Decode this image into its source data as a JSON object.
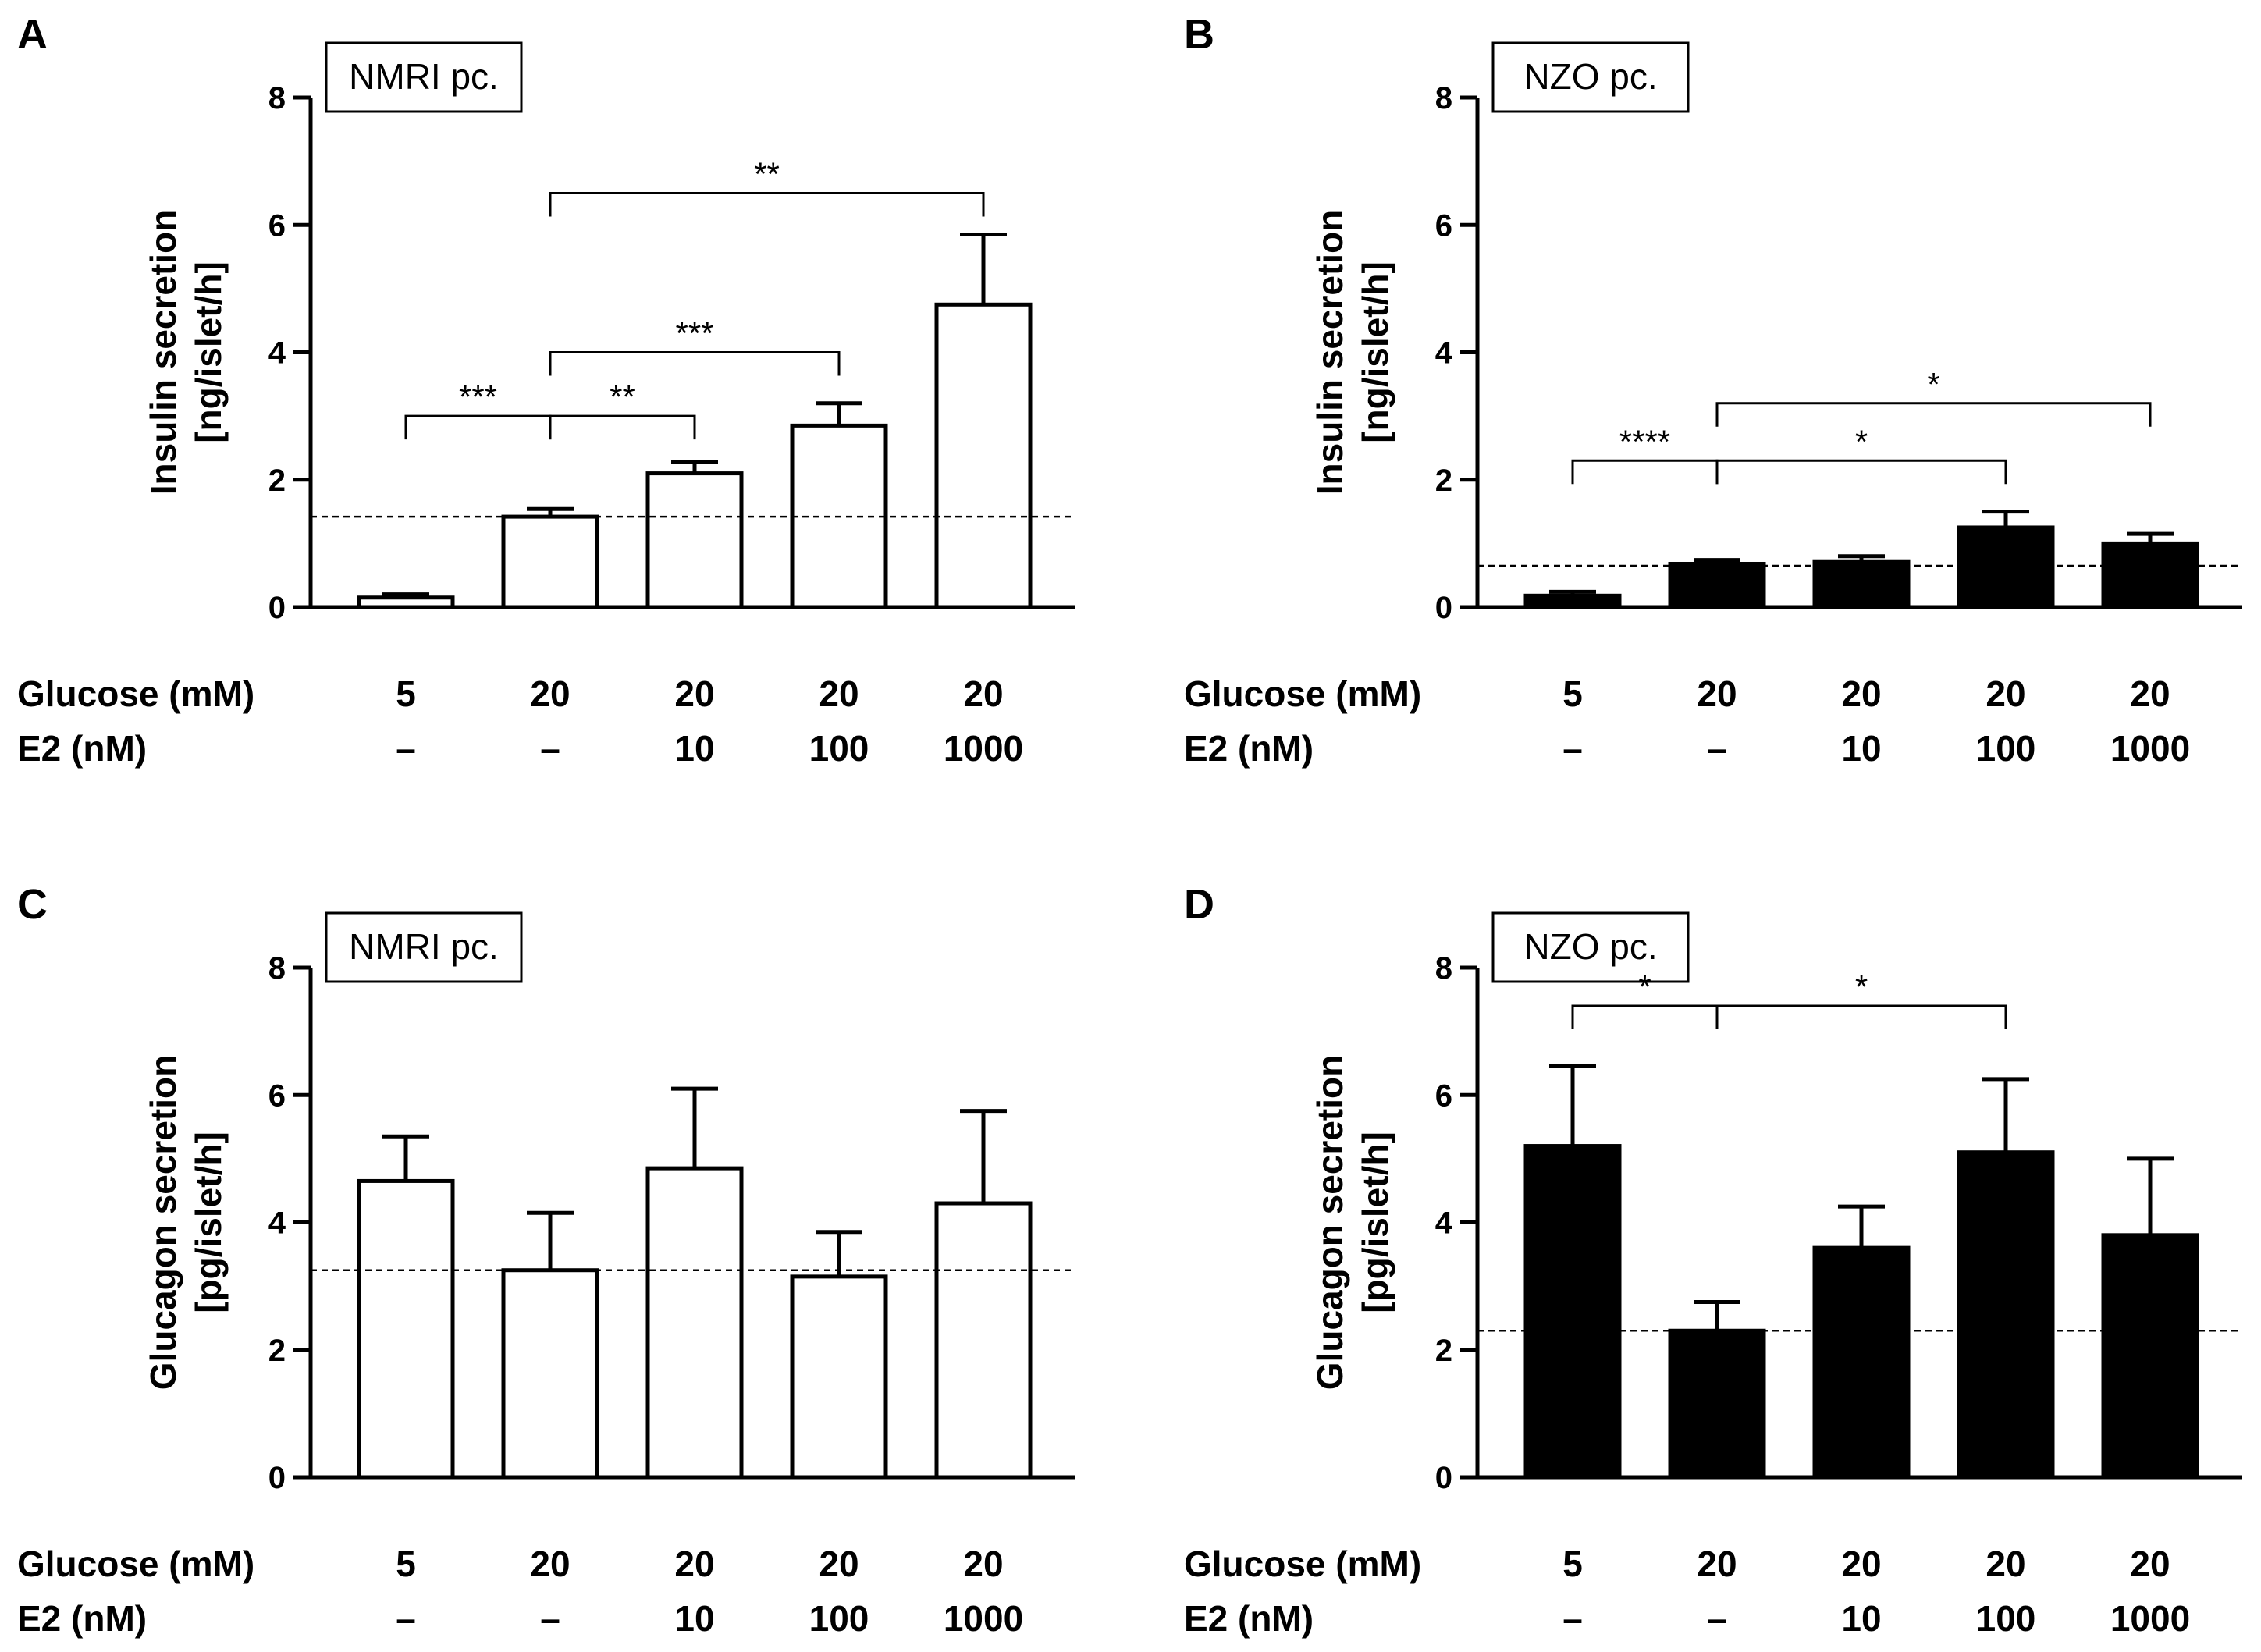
{
  "chart_data": [
    {
      "panel": "A",
      "type": "bar",
      "strain_label": "NMRI pc.",
      "ylabel": [
        "Insulin secretion",
        "[ng/islet/h]"
      ],
      "ylim": [
        0,
        8
      ],
      "yticks": [
        0,
        2,
        4,
        6,
        8
      ],
      "fill": "white",
      "glucose_label": "Glucose (mM)",
      "e2_label": "E2 (nM)",
      "glucose": [
        "5",
        "20",
        "20",
        "20",
        "20"
      ],
      "e2": [
        "–",
        "–",
        "10",
        "100",
        "1000"
      ],
      "values": [
        0.15,
        1.42,
        2.1,
        2.85,
        4.75
      ],
      "errors": [
        0.05,
        0.12,
        0.18,
        0.35,
        1.1
      ],
      "reference_line": 1.42,
      "significance": [
        {
          "from": 0,
          "to": 1,
          "label": "***",
          "y": 3.0
        },
        {
          "from": 1,
          "to": 2,
          "label": "**",
          "y": 3.0
        },
        {
          "from": 1,
          "to": 3,
          "label": "***",
          "y": 4.0
        },
        {
          "from": 1,
          "to": 4,
          "label": "**",
          "y": 6.5
        }
      ]
    },
    {
      "panel": "B",
      "type": "bar",
      "strain_label": "NZO pc.",
      "ylabel": [
        "Insulin secretion",
        "[ng/islet/h]"
      ],
      "ylim": [
        0,
        8
      ],
      "yticks": [
        0,
        2,
        4,
        6,
        8
      ],
      "fill": "black",
      "glucose_label": "Glucose (mM)",
      "e2_label": "E2 (nM)",
      "glucose": [
        "5",
        "20",
        "20",
        "20",
        "20"
      ],
      "e2": [
        "–",
        "–",
        "10",
        "100",
        "1000"
      ],
      "values": [
        0.18,
        0.68,
        0.72,
        1.25,
        1.0
      ],
      "errors": [
        0.06,
        0.06,
        0.08,
        0.25,
        0.15
      ],
      "reference_line": 0.65,
      "significance": [
        {
          "from": 0,
          "to": 1,
          "label": "****",
          "y": 2.3
        },
        {
          "from": 1,
          "to": 3,
          "label": "*",
          "y": 2.3
        },
        {
          "from": 1,
          "to": 4,
          "label": "*",
          "y": 3.2
        }
      ]
    },
    {
      "panel": "C",
      "type": "bar",
      "strain_label": "NMRI pc.",
      "ylabel": [
        "Glucagon secretion",
        "[pg/islet/h]"
      ],
      "ylim": [
        0,
        8
      ],
      "yticks": [
        0,
        2,
        4,
        6,
        8
      ],
      "fill": "white",
      "glucose_label": "Glucose (mM)",
      "e2_label": "E2 (nM)",
      "glucose": [
        "5",
        "20",
        "20",
        "20",
        "20"
      ],
      "e2": [
        "–",
        "–",
        "10",
        "100",
        "1000"
      ],
      "values": [
        4.65,
        3.25,
        4.85,
        3.15,
        4.3
      ],
      "errors": [
        0.7,
        0.9,
        1.25,
        0.7,
        1.45
      ],
      "reference_line": 3.25,
      "significance": []
    },
    {
      "panel": "D",
      "type": "bar",
      "strain_label": "NZO pc.",
      "ylabel": [
        "Glucagon secretion",
        "[pg/islet/h]"
      ],
      "ylim": [
        0,
        8
      ],
      "yticks": [
        0,
        2,
        4,
        6,
        8
      ],
      "fill": "black",
      "glucose_label": "Glucose (mM)",
      "e2_label": "E2 (nM)",
      "glucose": [
        "5",
        "20",
        "20",
        "20",
        "20"
      ],
      "e2": [
        "–",
        "–",
        "10",
        "100",
        "1000"
      ],
      "values": [
        5.2,
        2.3,
        3.6,
        5.1,
        3.8
      ],
      "errors": [
        1.25,
        0.45,
        0.65,
        1.15,
        1.2
      ],
      "reference_line": 2.3,
      "significance": [
        {
          "from": 0,
          "to": 1,
          "label": "*",
          "y": 7.4
        },
        {
          "from": 1,
          "to": 3,
          "label": "*",
          "y": 7.4
        }
      ]
    }
  ]
}
